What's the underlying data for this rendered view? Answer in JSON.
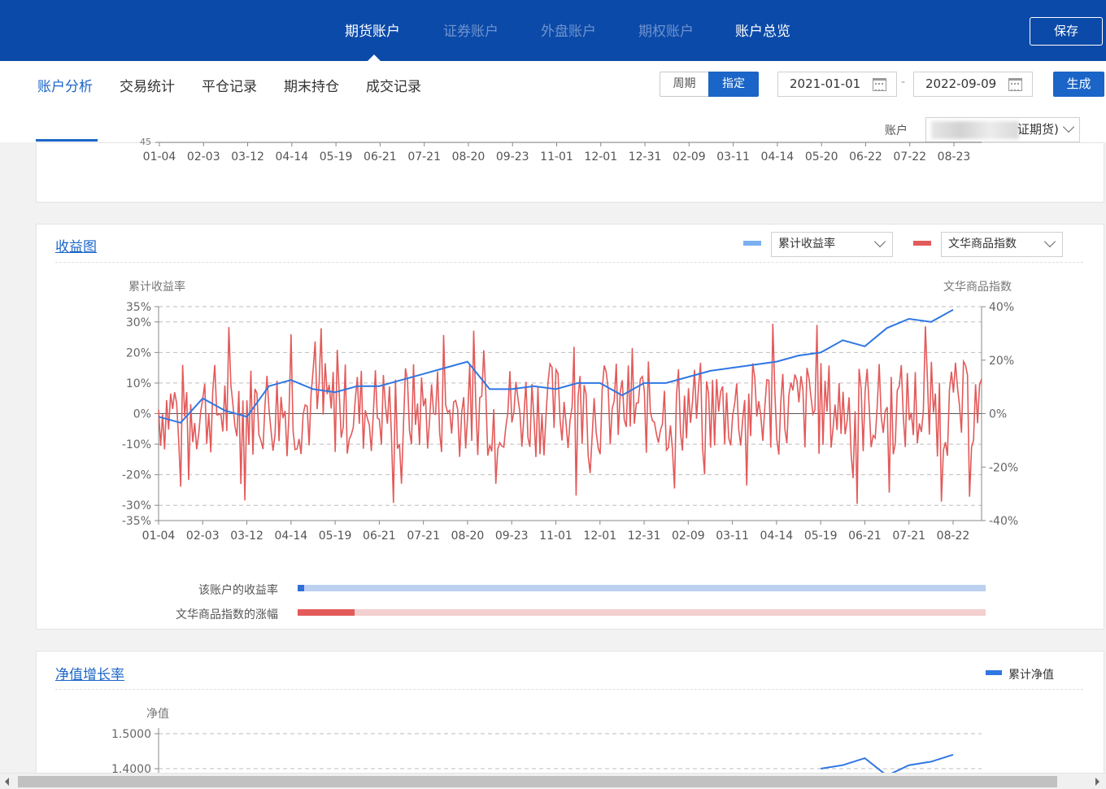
{
  "topnav": {
    "tabs": [
      {
        "label": "期货账户",
        "active": true
      },
      {
        "label": "证券账户",
        "active": false
      },
      {
        "label": "外盘账户",
        "active": false
      },
      {
        "label": "期权账户",
        "active": false
      },
      {
        "label": "账户总览",
        "active": true
      }
    ],
    "save_label": "保存"
  },
  "subnav": {
    "tabs": [
      {
        "label": "账户分析",
        "active": true
      },
      {
        "label": "交易统计",
        "active": false
      },
      {
        "label": "平仓记录",
        "active": false
      },
      {
        "label": "期末持仓",
        "active": false
      },
      {
        "label": "成交记录",
        "active": false
      }
    ],
    "period_label": "周期",
    "custom_label": "指定",
    "start_date": "2021-01-01",
    "end_date": "2022-09-09",
    "date_separator": "-",
    "generate_label": "生成",
    "account_label": "账户",
    "account_value": "证期货)"
  },
  "top_chart": {
    "cut_tick": "45",
    "x_ticks": [
      "01-04",
      "02-03",
      "03-12",
      "04-14",
      "05-19",
      "06-21",
      "07-21",
      "08-20",
      "09-23",
      "11-01",
      "12-01",
      "12-31",
      "02-09",
      "03-11",
      "04-14",
      "05-20",
      "06-22",
      "07-22",
      "08-23"
    ]
  },
  "returns_card": {
    "title": "收益图",
    "legend_left": "累计收益率",
    "legend_right": "文华商品指数",
    "colors": {
      "blue": "#2f77e3",
      "red": "#e35a5a",
      "blue_swatch": "#7ab0f0",
      "red_swatch": "#e35a5a"
    },
    "y_left_title": "累计收益率",
    "y_right_title": "文华商品指数",
    "bar_account_label": "该账户的收益率",
    "bar_index_label": "文华商品指数的涨幅",
    "bar_account_fraction": 0.01,
    "bar_index_fraction": 0.083
  },
  "chart_data": {
    "type": "line",
    "xlabel": "",
    "ylabel": "累计收益率",
    "y2label": "文华商品指数",
    "x_ticks": [
      "01-04",
      "02-03",
      "03-12",
      "04-14",
      "05-19",
      "06-21",
      "07-21",
      "08-20",
      "09-23",
      "11-01",
      "12-01",
      "12-31",
      "02-09",
      "03-11",
      "04-14",
      "05-19",
      "06-21",
      "07-21",
      "08-22"
    ],
    "y_left_ticks": [
      "35%",
      "30%",
      "20%",
      "10%",
      "0%",
      "-10%",
      "-20%",
      "-30%",
      "-35%"
    ],
    "y_right_ticks": [
      "40%",
      "20%",
      "0%",
      "-20%",
      "-40%"
    ],
    "ylim": [
      -35,
      35
    ],
    "y2lim": [
      -40,
      40
    ],
    "series": [
      {
        "name": "累计收益率",
        "axis": "left",
        "x_index": [
          0,
          0.5,
          1,
          1.5,
          2,
          2.5,
          3,
          3.5,
          4,
          4.5,
          5,
          5.5,
          6,
          6.5,
          7,
          7.5,
          8,
          8.5,
          9,
          9.5,
          10,
          10.5,
          11,
          11.5,
          12,
          12.5,
          13,
          13.5,
          14,
          14.5,
          15,
          15.5,
          16,
          16.5,
          17,
          17.5,
          18
        ],
        "values": [
          -1,
          -3,
          5,
          1,
          -1,
          9,
          11,
          8,
          7,
          9,
          9,
          11,
          13,
          15,
          17,
          8,
          8,
          9,
          8,
          10,
          10,
          6,
          10,
          10,
          12,
          14,
          15,
          16,
          17,
          19,
          20,
          24,
          22,
          28,
          31,
          30,
          34
        ],
        "color": "#2f77e3"
      },
      {
        "name": "文华商品指数",
        "axis": "right",
        "note_values": "daily returns, oscillating mostly between -25% and +30%",
        "color": "#e35a5a"
      }
    ]
  },
  "nav_card": {
    "title": "净值增长率",
    "legend": "累计净值",
    "y_title": "净值",
    "y_ticks": [
      "1.5000",
      "1.4000"
    ],
    "color": "#2f77e3"
  },
  "nav_chart_data": {
    "type": "line",
    "ylabel": "净值",
    "ylim": [
      1.4,
      1.5
    ],
    "series": [
      {
        "name": "累计净值",
        "x_index": [
          15,
          15.5,
          16,
          16.5,
          17,
          17.5,
          18
        ],
        "values": [
          1.4,
          1.41,
          1.43,
          1.38,
          1.41,
          1.42,
          1.44
        ]
      }
    ]
  }
}
